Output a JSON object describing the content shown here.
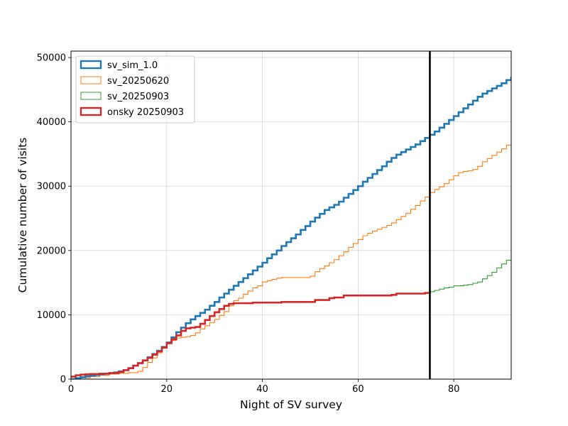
{
  "chart_data": {
    "type": "line",
    "title": "",
    "xlabel": "Night of SV survey",
    "ylabel": "Cumulative number of visits",
    "xlim": [
      0,
      92
    ],
    "ylim": [
      0,
      51000
    ],
    "xticks": [
      0,
      20,
      40,
      60,
      80
    ],
    "yticks": [
      0,
      10000,
      20000,
      30000,
      40000,
      50000
    ],
    "xtick_labels": [
      "0",
      "20",
      "40",
      "60",
      "80"
    ],
    "ytick_labels": [
      "0",
      "10000",
      "20000",
      "30000",
      "40000",
      "50000"
    ],
    "grid": true,
    "legend_position": "top-left",
    "vline_x": 75,
    "vline_color": "#000000",
    "series": [
      {
        "name": "sv_sim_1.0",
        "color": "#1f77b4",
        "style": "thick",
        "points": [
          [
            0,
            0
          ],
          [
            1,
            150
          ],
          [
            2,
            300
          ],
          [
            3,
            450
          ],
          [
            4,
            550
          ],
          [
            5,
            650
          ],
          [
            6,
            750
          ],
          [
            7,
            850
          ],
          [
            8,
            950
          ],
          [
            9,
            1050
          ],
          [
            10,
            1200
          ],
          [
            11,
            1400
          ],
          [
            12,
            1700
          ],
          [
            13,
            2100
          ],
          [
            14,
            2500
          ],
          [
            15,
            2900
          ],
          [
            16,
            3400
          ],
          [
            17,
            3900
          ],
          [
            18,
            4400
          ],
          [
            19,
            5000
          ],
          [
            20,
            5700
          ],
          [
            21,
            6500
          ],
          [
            22,
            7300
          ],
          [
            23,
            8000
          ],
          [
            24,
            8700
          ],
          [
            25,
            9300
          ],
          [
            26,
            9800
          ],
          [
            27,
            10300
          ],
          [
            28,
            10800
          ],
          [
            29,
            11400
          ],
          [
            30,
            12000
          ],
          [
            31,
            12700
          ],
          [
            32,
            13300
          ],
          [
            33,
            13900
          ],
          [
            34,
            14500
          ],
          [
            35,
            15100
          ],
          [
            36,
            15700
          ],
          [
            37,
            16300
          ],
          [
            38,
            16900
          ],
          [
            39,
            17500
          ],
          [
            40,
            18100
          ],
          [
            41,
            18800
          ],
          [
            42,
            19400
          ],
          [
            43,
            20000
          ],
          [
            44,
            20700
          ],
          [
            45,
            21300
          ],
          [
            46,
            21900
          ],
          [
            47,
            22500
          ],
          [
            48,
            23200
          ],
          [
            49,
            23800
          ],
          [
            50,
            24500
          ],
          [
            51,
            25100
          ],
          [
            52,
            25700
          ],
          [
            53,
            26300
          ],
          [
            54,
            26700
          ],
          [
            55,
            27100
          ],
          [
            56,
            27600
          ],
          [
            57,
            28200
          ],
          [
            58,
            28800
          ],
          [
            59,
            29400
          ],
          [
            60,
            30000
          ],
          [
            61,
            30700
          ],
          [
            62,
            31300
          ],
          [
            63,
            31900
          ],
          [
            64,
            32500
          ],
          [
            65,
            33100
          ],
          [
            66,
            33800
          ],
          [
            67,
            34400
          ],
          [
            68,
            34900
          ],
          [
            69,
            35300
          ],
          [
            70,
            35700
          ],
          [
            71,
            36100
          ],
          [
            72,
            36500
          ],
          [
            73,
            37000
          ],
          [
            74,
            37500
          ],
          [
            75,
            38000
          ],
          [
            76,
            38500
          ],
          [
            77,
            39100
          ],
          [
            78,
            39700
          ],
          [
            79,
            40300
          ],
          [
            80,
            40900
          ],
          [
            81,
            41500
          ],
          [
            82,
            42100
          ],
          [
            83,
            42700
          ],
          [
            84,
            43300
          ],
          [
            85,
            43900
          ],
          [
            86,
            44400
          ],
          [
            87,
            44800
          ],
          [
            88,
            45200
          ],
          [
            89,
            45600
          ],
          [
            90,
            46000
          ],
          [
            91,
            46500
          ],
          [
            92,
            47000
          ]
        ]
      },
      {
        "name": "sv_20250620",
        "color": "#ff7f0e",
        "style": "thin",
        "points": [
          [
            0,
            0
          ],
          [
            2,
            200
          ],
          [
            4,
            400
          ],
          [
            6,
            600
          ],
          [
            8,
            800
          ],
          [
            10,
            900
          ],
          [
            12,
            1000
          ],
          [
            14,
            1200
          ],
          [
            15,
            1800
          ],
          [
            16,
            2600
          ],
          [
            17,
            3300
          ],
          [
            18,
            4100
          ],
          [
            19,
            4800
          ],
          [
            20,
            5500
          ],
          [
            21,
            6000
          ],
          [
            22,
            6400
          ],
          [
            23,
            6500
          ],
          [
            24,
            6600
          ],
          [
            25,
            6800
          ],
          [
            26,
            7200
          ],
          [
            27,
            7800
          ],
          [
            28,
            8300
          ],
          [
            29,
            8800
          ],
          [
            30,
            9300
          ],
          [
            31,
            9900
          ],
          [
            32,
            10500
          ],
          [
            33,
            11400
          ],
          [
            34,
            12200
          ],
          [
            35,
            12600
          ],
          [
            36,
            13200
          ],
          [
            37,
            13700
          ],
          [
            38,
            14200
          ],
          [
            39,
            14500
          ],
          [
            40,
            15100
          ],
          [
            41,
            15300
          ],
          [
            42,
            15500
          ],
          [
            43,
            15700
          ],
          [
            44,
            15800
          ],
          [
            50,
            16000
          ],
          [
            51,
            16700
          ],
          [
            52,
            17200
          ],
          [
            53,
            17600
          ],
          [
            54,
            18100
          ],
          [
            55,
            18600
          ],
          [
            56,
            19200
          ],
          [
            57,
            19800
          ],
          [
            58,
            20500
          ],
          [
            59,
            21100
          ],
          [
            60,
            21700
          ],
          [
            61,
            22300
          ],
          [
            62,
            22700
          ],
          [
            63,
            23000
          ],
          [
            64,
            23300
          ],
          [
            65,
            23600
          ],
          [
            66,
            23900
          ],
          [
            67,
            24300
          ],
          [
            68,
            24800
          ],
          [
            69,
            25300
          ],
          [
            70,
            25800
          ],
          [
            71,
            26400
          ],
          [
            72,
            27000
          ],
          [
            73,
            27700
          ],
          [
            74,
            28300
          ],
          [
            75,
            29000
          ],
          [
            76,
            29500
          ],
          [
            77,
            29900
          ],
          [
            78,
            30400
          ],
          [
            79,
            31000
          ],
          [
            80,
            31600
          ],
          [
            81,
            32100
          ],
          [
            82,
            32300
          ],
          [
            83,
            32400
          ],
          [
            84,
            32600
          ],
          [
            85,
            33100
          ],
          [
            86,
            33800
          ],
          [
            87,
            34300
          ],
          [
            88,
            34800
          ],
          [
            89,
            35300
          ],
          [
            90,
            35800
          ],
          [
            91,
            36400
          ],
          [
            92,
            36900
          ]
        ]
      },
      {
        "name": "sv_20250903",
        "color": "#2ca02c",
        "style": "thin",
        "points": [
          [
            75,
            13600
          ],
          [
            76,
            13800
          ],
          [
            77,
            14000
          ],
          [
            78,
            14200
          ],
          [
            79,
            14300
          ],
          [
            80,
            14500
          ],
          [
            82,
            14600
          ],
          [
            83,
            14700
          ],
          [
            84,
            14900
          ],
          [
            85,
            15100
          ],
          [
            86,
            15600
          ],
          [
            87,
            16100
          ],
          [
            88,
            16600
          ],
          [
            89,
            17300
          ],
          [
            90,
            17900
          ],
          [
            91,
            18500
          ],
          [
            92,
            18700
          ]
        ]
      },
      {
        "name": "onsky 20250903",
        "color": "#d62728",
        "style": "thick",
        "points": [
          [
            0,
            400
          ],
          [
            1,
            600
          ],
          [
            2,
            700
          ],
          [
            3,
            750
          ],
          [
            4,
            800
          ],
          [
            6,
            850
          ],
          [
            8,
            950
          ],
          [
            10,
            1100
          ],
          [
            11,
            1400
          ],
          [
            12,
            1700
          ],
          [
            13,
            2100
          ],
          [
            14,
            2500
          ],
          [
            15,
            2900
          ],
          [
            16,
            3300
          ],
          [
            17,
            3800
          ],
          [
            18,
            4300
          ],
          [
            19,
            4900
          ],
          [
            20,
            5600
          ],
          [
            21,
            6200
          ],
          [
            22,
            6800
          ],
          [
            23,
            7500
          ],
          [
            24,
            7900
          ],
          [
            25,
            8000
          ],
          [
            26,
            8100
          ],
          [
            27,
            8600
          ],
          [
            28,
            9200
          ],
          [
            29,
            9800
          ],
          [
            30,
            10400
          ],
          [
            31,
            10900
          ],
          [
            32,
            11400
          ],
          [
            33,
            11700
          ],
          [
            34,
            11800
          ],
          [
            38,
            11900
          ],
          [
            44,
            12000
          ],
          [
            51,
            12300
          ],
          [
            54,
            12600
          ],
          [
            55,
            12700
          ],
          [
            57,
            13000
          ],
          [
            67,
            13100
          ],
          [
            68,
            13300
          ],
          [
            74,
            13400
          ],
          [
            75,
            13600
          ]
        ]
      }
    ]
  }
}
